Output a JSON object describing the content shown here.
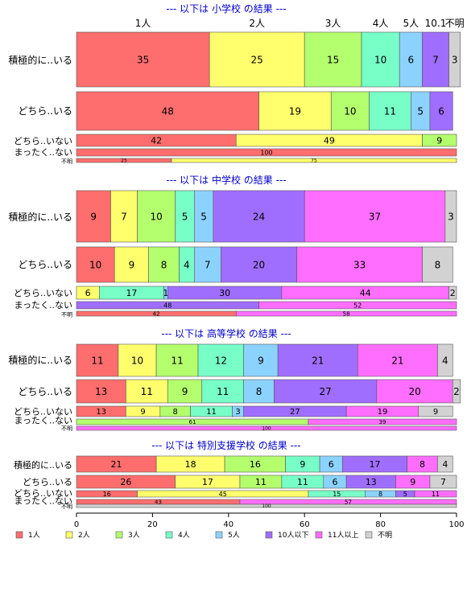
{
  "chart_data": {
    "type": "bar",
    "orientation": "horizontal",
    "stacked": "percent",
    "xlim": [
      0,
      100
    ],
    "x_ticks": [
      "0",
      "20",
      "40",
      "60",
      "80",
      "100"
    ],
    "grid": false,
    "legend_position": "bottom-left",
    "categories_legend": [
      {
        "name": "1人",
        "color": "#FF6E6E"
      },
      {
        "name": "2人",
        "color": "#FFFF6E"
      },
      {
        "name": "3人",
        "color": "#B4FF6E"
      },
      {
        "name": "4人",
        "color": "#78FFC8"
      },
      {
        "name": "5人",
        "color": "#8CD2FF"
      },
      {
        "name": "10人以下",
        "color": "#A06EFF"
      },
      {
        "name": "11人以上",
        "color": "#FF6EFF"
      },
      {
        "name": "不明",
        "color": "#D2D2D2"
      }
    ],
    "top_segment_labels": [
      "1人",
      "2人",
      "3人",
      "4人",
      "5人",
      "10.1",
      "不明"
    ],
    "panels": [
      {
        "title": "--- 以下は 小学校 の結果 ---",
        "rows": [
          {
            "label": "積極的に..いる",
            "values": [
              35,
              25,
              15,
              10,
              6,
              7,
              0,
              3
            ]
          },
          {
            "label": "どちら..いる",
            "values": [
              48,
              19,
              10,
              11,
              5,
              6,
              0,
              0
            ]
          },
          {
            "label": "どちら..いない",
            "values": [
              42,
              49,
              9,
              0,
              0,
              0,
              0,
              0
            ]
          },
          {
            "label": "まったく..ない",
            "values": [
              100,
              0,
              0,
              0,
              0,
              0,
              0,
              0
            ]
          },
          {
            "label": "不明",
            "values": [
              25,
              75,
              0,
              0,
              0,
              0,
              0,
              0
            ]
          }
        ]
      },
      {
        "title": "--- 以下は 中学校 の結果 ---",
        "rows": [
          {
            "label": "積極的に..いる",
            "values": [
              9,
              7,
              10,
              5,
              5,
              24,
              37,
              3
            ]
          },
          {
            "label": "どちら..いる",
            "values": [
              10,
              9,
              8,
              4,
              7,
              20,
              33,
              8
            ]
          },
          {
            "label": "どちら..いない",
            "values": [
              0,
              6,
              0,
              17,
              1,
              30,
              44,
              2
            ]
          },
          {
            "label": "まったく..ない",
            "values": [
              0,
              0,
              0,
              0,
              0,
              48,
              52,
              0
            ]
          },
          {
            "label": "不明",
            "values": [
              42,
              0,
              0,
              0,
              0,
              0,
              58,
              0
            ]
          }
        ]
      },
      {
        "title": "--- 以下は 高等学校 の結果 ---",
        "rows": [
          {
            "label": "積極的に..いる",
            "values": [
              11,
              10,
              11,
              12,
              9,
              21,
              21,
              4
            ]
          },
          {
            "label": "どちら..いる",
            "values": [
              13,
              11,
              9,
              11,
              8,
              27,
              20,
              2
            ]
          },
          {
            "label": "どちら..いない",
            "values": [
              13,
              9,
              8,
              11,
              3,
              27,
              19,
              9
            ]
          },
          {
            "label": "まったく..ない",
            "values": [
              0,
              0,
              61,
              0,
              0,
              0,
              39,
              0
            ]
          },
          {
            "label": "不明",
            "values": [
              0,
              0,
              0,
              0,
              0,
              0,
              100,
              0
            ]
          }
        ]
      },
      {
        "title": "--- 以下は 特別支援学校 の結果 ---",
        "rows": [
          {
            "label": "積極的に..いる",
            "values": [
              21,
              18,
              16,
              9,
              6,
              17,
              8,
              4
            ]
          },
          {
            "label": "どちら..いる",
            "values": [
              26,
              17,
              11,
              11,
              6,
              13,
              9,
              7
            ]
          },
          {
            "label": "どちら..いない",
            "values": [
              16,
              45,
              0,
              15,
              8,
              5,
              11,
              0
            ]
          },
          {
            "label": "まったく..ない",
            "values": [
              43,
              0,
              0,
              0,
              0,
              0,
              57,
              0
            ]
          },
          {
            "label": "不明",
            "values": [
              0,
              0,
              0,
              0,
              0,
              0,
              0,
              100
            ]
          }
        ]
      }
    ]
  }
}
